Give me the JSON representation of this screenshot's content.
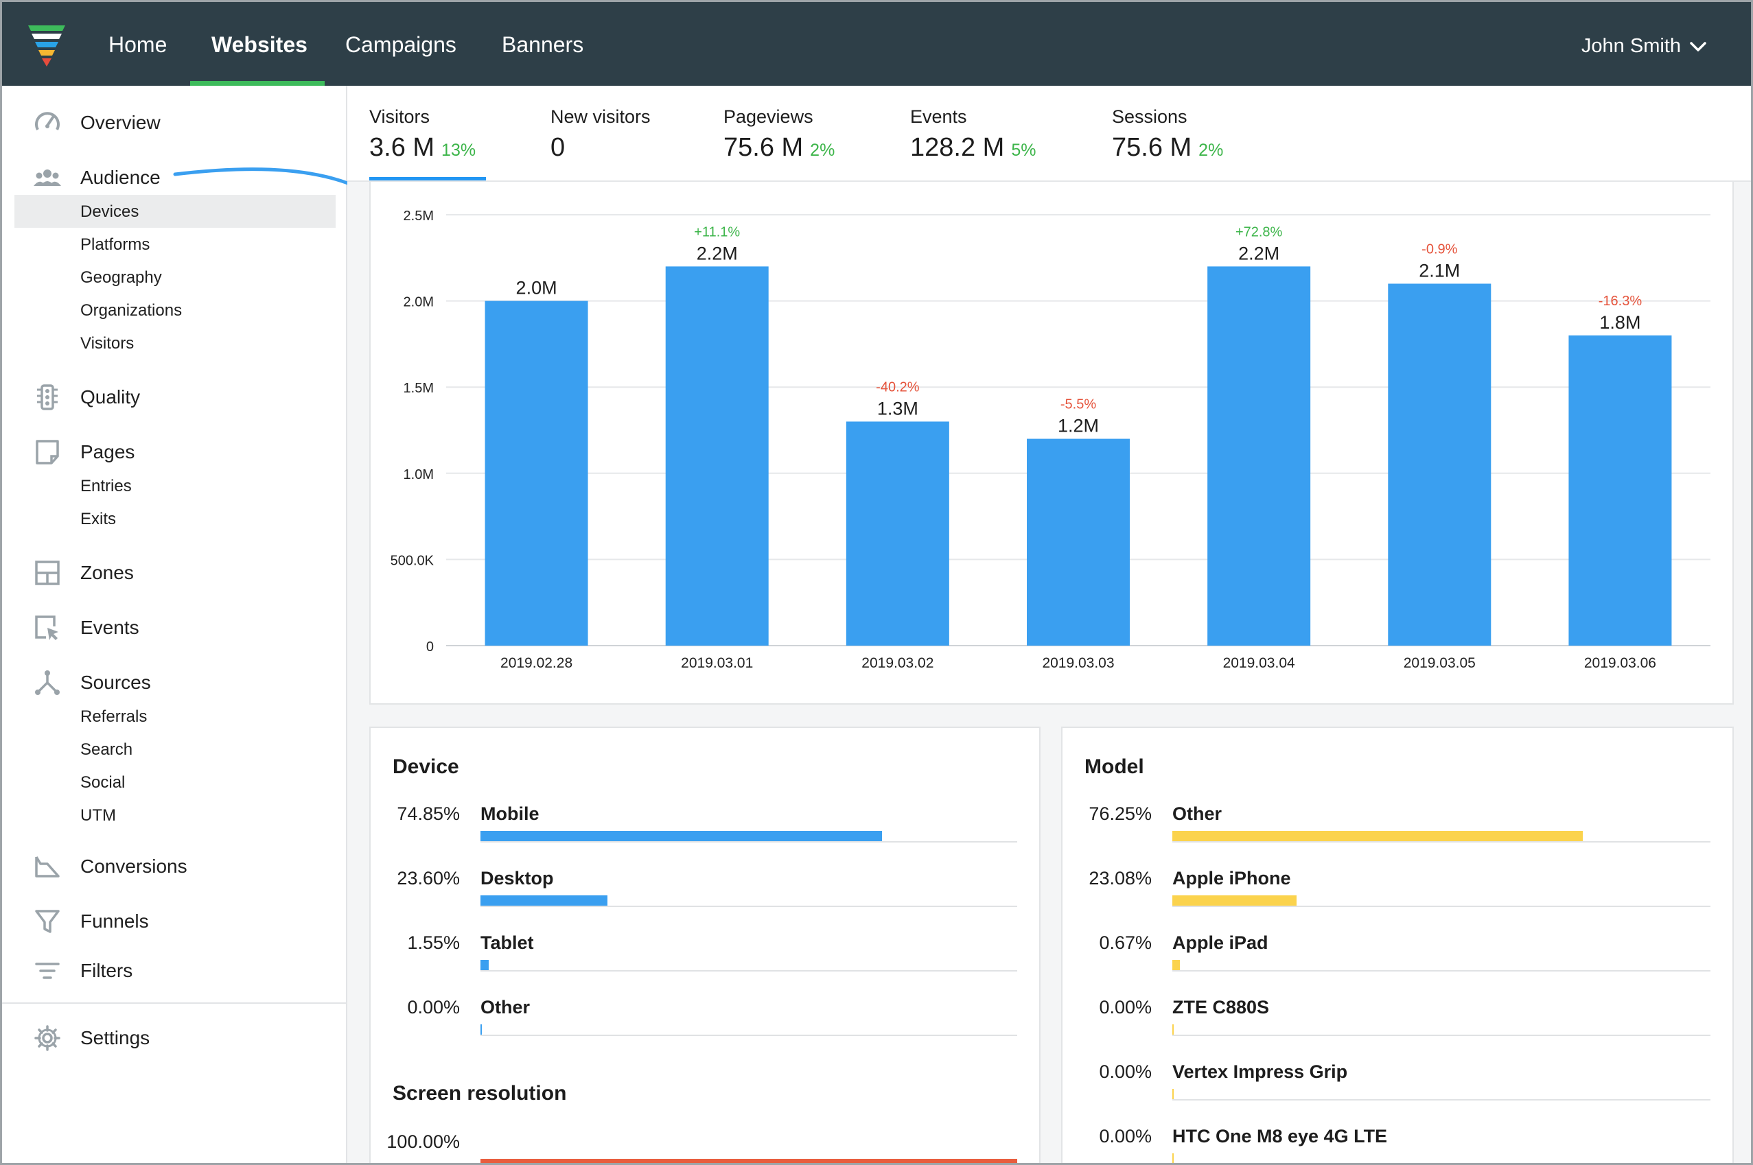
{
  "colors": {
    "topbar": "#2e3f48",
    "accent_green": "#3dbb5b",
    "bar_blue": "#3a9ff0",
    "positive": "#3db54a",
    "negative": "#e5533b",
    "yellow": "#fbd34d",
    "orange_red": "#e85d3e"
  },
  "topnav": {
    "items": [
      {
        "label": "Home"
      },
      {
        "label": "Websites"
      },
      {
        "label": "Campaigns"
      },
      {
        "label": "Banners"
      }
    ],
    "active": "Websites",
    "user": "John Smith",
    "user_icon": "chevron-down-icon"
  },
  "sidebar": {
    "overview": {
      "label": "Overview",
      "icon": "speedometer-icon"
    },
    "audience": {
      "label": "Audience",
      "icon": "people-icon",
      "sub": [
        "Devices",
        "Platforms",
        "Geography",
        "Organizations",
        "Visitors"
      ],
      "active": "Devices"
    },
    "quality": {
      "label": "Quality",
      "icon": "traffic-light-icon"
    },
    "pages": {
      "label": "Pages",
      "icon": "page-icon",
      "sub": [
        "Entries",
        "Exits"
      ]
    },
    "zones": {
      "label": "Zones",
      "icon": "grid-icon"
    },
    "events": {
      "label": "Events",
      "icon": "cursor-icon"
    },
    "sources": {
      "label": "Sources",
      "icon": "branch-icon",
      "sub": [
        "Referrals",
        "Search",
        "Social",
        "UTM"
      ]
    },
    "conversions": {
      "label": "Conversions",
      "icon": "conversion-icon"
    },
    "funnels": {
      "label": "Funnels",
      "icon": "funnel-icon"
    },
    "filters": {
      "label": "Filters",
      "icon": "filter-lines-icon"
    },
    "settings": {
      "label": "Settings",
      "icon": "gear-icon"
    }
  },
  "metrics": [
    {
      "label": "Visitors",
      "value": "3.6 M",
      "change": "13%"
    },
    {
      "label": "New visitors",
      "value": "0",
      "change": ""
    },
    {
      "label": "Pageviews",
      "value": "75.6 M",
      "change": "2%"
    },
    {
      "label": "Events",
      "value": "128.2 M",
      "change": "5%"
    },
    {
      "label": "Sessions",
      "value": "75.6 M",
      "change": "2%"
    }
  ],
  "chart_data": {
    "type": "bar",
    "categories": [
      "2019.02.28",
      "2019.03.01",
      "2019.03.02",
      "2019.03.03",
      "2019.03.04",
      "2019.03.05",
      "2019.03.06"
    ],
    "values": [
      2.0,
      2.2,
      1.3,
      1.2,
      2.2,
      2.1,
      1.8
    ],
    "value_labels": [
      "2.0M",
      "2.2M",
      "1.3M",
      "1.2M",
      "2.2M",
      "2.1M",
      "1.8M"
    ],
    "change_labels": [
      "",
      "+11.1%",
      "-40.2%",
      "-5.5%",
      "+72.8%",
      "-0.9%",
      "-16.3%"
    ],
    "yticks": [
      "0",
      "500.0K",
      "1.0M",
      "1.5M",
      "2.0M",
      "2.5M"
    ],
    "ylim": [
      0,
      2.5
    ],
    "grid": true,
    "legend": "none"
  },
  "device": {
    "title": "Device",
    "rows": [
      {
        "pct": "74.85%",
        "name": "Mobile",
        "value": 74.85
      },
      {
        "pct": "23.60%",
        "name": "Desktop",
        "value": 23.6
      },
      {
        "pct": "1.55%",
        "name": "Tablet",
        "value": 1.55
      },
      {
        "pct": "0.00%",
        "name": "Other",
        "value": 0.0
      }
    ]
  },
  "screen_resolution": {
    "title": "Screen resolution",
    "rows": [
      {
        "pct": "100.00%",
        "name": "",
        "value": 100.0
      }
    ]
  },
  "model": {
    "title": "Model",
    "rows": [
      {
        "pct": "76.25%",
        "name": "Other",
        "value": 76.25
      },
      {
        "pct": "23.08%",
        "name": "Apple iPhone",
        "value": 23.08
      },
      {
        "pct": "0.67%",
        "name": "Apple iPad",
        "value": 0.67
      },
      {
        "pct": "0.00%",
        "name": "ZTE C880S",
        "value": 0.0
      },
      {
        "pct": "0.00%",
        "name": "Vertex Impress Grip",
        "value": 0.0
      },
      {
        "pct": "0.00%",
        "name": "HTC One M8 eye 4G LTE",
        "value": 0.0
      }
    ]
  }
}
